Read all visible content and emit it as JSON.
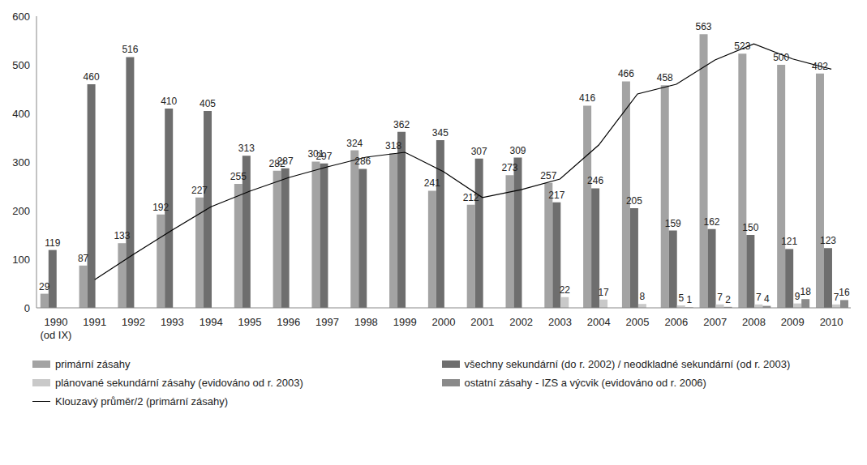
{
  "chart_data": {
    "type": "bar",
    "categories": [
      "1990\n(od IX)",
      "1991",
      "1992",
      "1993",
      "1994",
      "1995",
      "1996",
      "1997",
      "1998",
      "1999",
      "2000",
      "2001",
      "2002",
      "2003",
      "2004",
      "2005",
      "2006",
      "2007",
      "2008",
      "2009",
      "2010"
    ],
    "ylim": [
      0,
      600
    ],
    "yticks": [
      0,
      100,
      200,
      300,
      400,
      500,
      600
    ],
    "grid": false,
    "legend": "bottom",
    "series": [
      {
        "name": "primární zásahy",
        "type": "bar",
        "color": "#a3a3a3",
        "data_labels": true,
        "values": [
          29,
          87,
          133,
          192,
          227,
          255,
          282,
          301,
          324,
          318,
          241,
          212,
          273,
          257,
          416,
          466,
          458,
          563,
          523,
          500,
          482
        ]
      },
      {
        "name": "všechny sekundární (do r. 2002) / neodkladné sekundární (od r. 2003)",
        "type": "bar",
        "color": "#6e6e6e",
        "data_labels": true,
        "values": [
          119,
          460,
          516,
          410,
          405,
          313,
          287,
          297,
          286,
          362,
          345,
          307,
          309,
          217,
          246,
          205,
          159,
          162,
          150,
          121,
          123
        ]
      },
      {
        "name": "plánované sekundární zásahy (evidováno od r. 2003)",
        "type": "bar",
        "color": "#c9c9c9",
        "data_labels": true,
        "values": [
          null,
          null,
          null,
          null,
          null,
          null,
          null,
          null,
          null,
          null,
          null,
          null,
          null,
          22,
          17,
          8,
          5,
          7,
          7,
          9,
          7
        ]
      },
      {
        "name": "ostatní zásahy - IZS a výcvik (evidováno od r. 2006)",
        "type": "bar",
        "color": "#8a8a8a",
        "data_labels": true,
        "values": [
          null,
          null,
          null,
          null,
          null,
          null,
          null,
          null,
          null,
          null,
          null,
          null,
          null,
          null,
          null,
          null,
          1,
          2,
          4,
          18,
          16
        ]
      },
      {
        "name": "Klouzavý průměr/2 (primární zásahy)",
        "type": "line",
        "color": "#000000",
        "marker": "none",
        "line_style": "solid",
        "data_labels": false,
        "values": [
          null,
          58,
          110,
          160,
          208,
          240,
          268,
          290,
          310,
          320,
          280,
          227,
          243,
          265,
          335,
          440,
          460,
          510,
          543,
          512,
          491
        ]
      }
    ]
  }
}
